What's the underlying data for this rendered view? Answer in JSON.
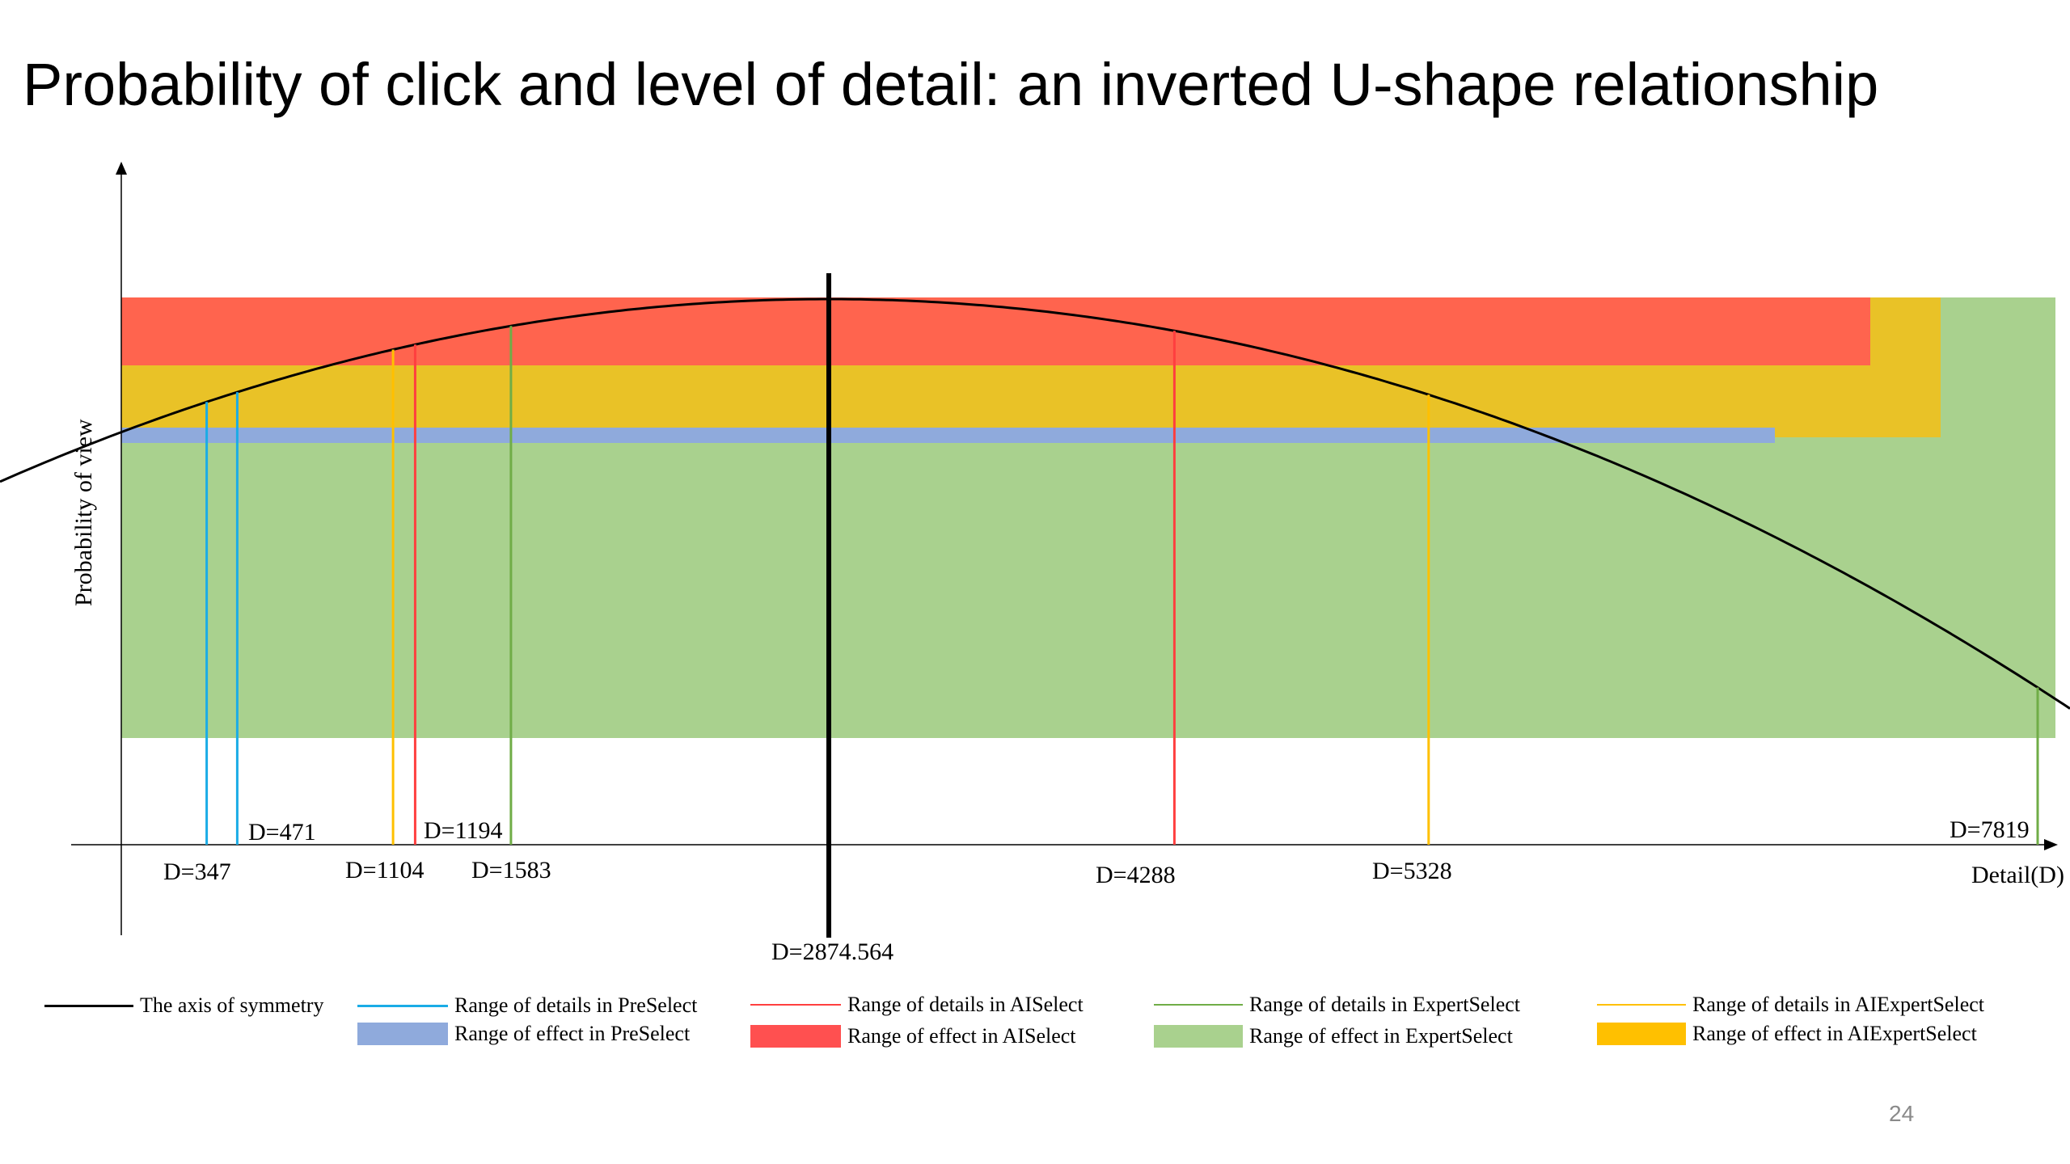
{
  "title": "Probability of click and level of detail: an inverted U-shape relationship",
  "page_number": "24",
  "colors": {
    "preselect_line": "#1AACE6",
    "preselect_fill": "#8FAADC",
    "aiselect_line": "#FF3F3F",
    "aiselect_fill": "#FF644E",
    "expertselect_line": "#70AD47",
    "expertselect_fill": "#A9D18E",
    "aiexpertselect_line": "#FFC000",
    "aiexpertselect_fill": "#E9C227",
    "symmetry": "#000000"
  },
  "chart_data": {
    "type": "diagram",
    "xlabel": "Detail(D)",
    "ylabel": "Probability of view",
    "grid": false,
    "axis_of_symmetry": {
      "label": "D=2874.564",
      "value": 2874.564
    },
    "markers": [
      {
        "label": "D=347",
        "value": 347,
        "series": "PreSelect"
      },
      {
        "label": "D=471",
        "value": 471,
        "series": "PreSelect"
      },
      {
        "label": "D=1104",
        "value": 1104,
        "series": "AIExpertSelect"
      },
      {
        "label": "D=1194",
        "value": 1194,
        "series": "AISelect"
      },
      {
        "label": "D=1583",
        "value": 1583,
        "series": "ExpertSelect"
      },
      {
        "label": "D=4288",
        "value": 4288,
        "series": "AISelect"
      },
      {
        "label": "D=5328",
        "value": 5328,
        "series": "AIExpertSelect"
      },
      {
        "label": "D=7819",
        "value": 7819,
        "series": "ExpertSelect"
      }
    ]
  },
  "legend": {
    "symmetry": "The axis of symmetry",
    "preselect_details": "Range of details in PreSelect",
    "preselect_effect": "Range of effect in PreSelect",
    "aiselect_details": "Range of details in AISelect",
    "aiselect_effect": "Range of effect in AISelect",
    "expertselect_details": "Range of details in ExpertSelect",
    "expertselect_effect": "Range of effect in ExpertSelect",
    "aiexpertselect_details": "Range of details in AIExpertSelect",
    "aiexpertselect_effect": "Range of effect in AIExpertSelect"
  }
}
